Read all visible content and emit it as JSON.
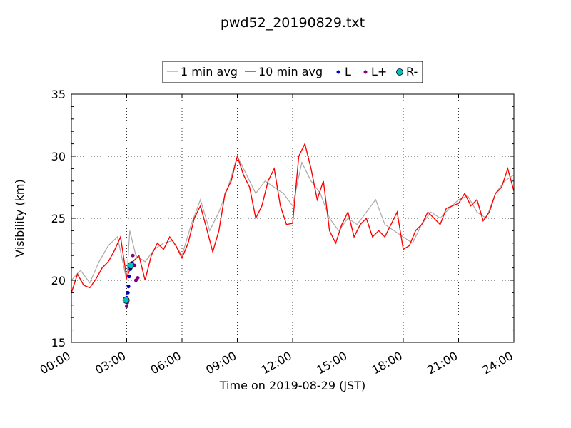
{
  "chart_data": {
    "type": "line",
    "title": "pwd52_20190829.txt",
    "xlabel": "Time on 2019-08-29 (JST)",
    "ylabel": "Visibility (km)",
    "xlim": [
      "00:00",
      "24:00"
    ],
    "ylim": [
      15,
      35
    ],
    "x_ticks": [
      "00:00",
      "03:00",
      "06:00",
      "09:00",
      "12:00",
      "15:00",
      "18:00",
      "21:00",
      "24:00"
    ],
    "y_ticks": [
      "15",
      "20",
      "25",
      "30",
      "35"
    ],
    "grid": true,
    "legend_position": "top-center",
    "series": [
      {
        "name": "1 min avg",
        "color": "#aaaaaa",
        "x": [
          "00:00",
          "00:30",
          "01:00",
          "01:30",
          "02:00",
          "02:30",
          "03:00",
          "03:10",
          "03:30",
          "04:00",
          "04:30",
          "05:00",
          "05:30",
          "06:00",
          "06:30",
          "07:00",
          "07:30",
          "08:00",
          "08:30",
          "09:00",
          "09:30",
          "10:00",
          "10:30",
          "11:00",
          "11:30",
          "12:00",
          "12:30",
          "13:00",
          "13:30",
          "14:00",
          "14:30",
          "15:00",
          "15:30",
          "16:00",
          "16:30",
          "17:00",
          "17:30",
          "18:00",
          "18:30",
          "19:00",
          "19:30",
          "20:00",
          "20:30",
          "21:00",
          "21:30",
          "22:00",
          "22:30",
          "23:00",
          "23:30",
          "24:00"
        ],
        "y": [
          20.0,
          20.8,
          19.8,
          21.5,
          22.8,
          23.5,
          20.0,
          24.0,
          22.0,
          21.5,
          22.5,
          23.0,
          23.2,
          22.0,
          24.5,
          26.5,
          24.0,
          25.5,
          27.5,
          30.0,
          28.5,
          27.0,
          28.0,
          27.5,
          27.0,
          26.0,
          29.5,
          28.0,
          27.0,
          25.0,
          24.0,
          25.0,
          24.5,
          25.5,
          26.5,
          24.5,
          24.0,
          23.5,
          23.0,
          24.5,
          25.5,
          25.0,
          25.8,
          26.5,
          26.8,
          25.5,
          25.0,
          27.0,
          28.0,
          28.5
        ]
      },
      {
        "name": "10 min avg",
        "color": "#ff0000",
        "x": [
          "00:00",
          "00:20",
          "00:40",
          "01:00",
          "01:20",
          "01:40",
          "02:00",
          "02:20",
          "02:40",
          "03:00",
          "03:20",
          "03:40",
          "04:00",
          "04:20",
          "04:40",
          "05:00",
          "05:20",
          "05:40",
          "06:00",
          "06:20",
          "06:40",
          "07:00",
          "07:20",
          "07:40",
          "08:00",
          "08:20",
          "08:40",
          "09:00",
          "09:20",
          "09:40",
          "10:00",
          "10:20",
          "10:40",
          "11:00",
          "11:20",
          "11:40",
          "12:00",
          "12:20",
          "12:40",
          "13:00",
          "13:20",
          "13:40",
          "14:00",
          "14:20",
          "14:40",
          "15:00",
          "15:20",
          "15:40",
          "16:00",
          "16:20",
          "16:40",
          "17:00",
          "17:20",
          "17:40",
          "18:00",
          "18:20",
          "18:40",
          "19:00",
          "19:20",
          "19:40",
          "20:00",
          "20:20",
          "20:40",
          "21:00",
          "21:20",
          "21:40",
          "22:00",
          "22:20",
          "22:40",
          "23:00",
          "23:20",
          "23:40",
          "24:00"
        ],
        "y": [
          19.0,
          20.5,
          19.6,
          19.4,
          20.1,
          21.0,
          21.5,
          22.4,
          23.5,
          20.2,
          21.5,
          22.0,
          20.0,
          22.0,
          23.0,
          22.5,
          23.5,
          22.8,
          21.8,
          23.0,
          25.0,
          26.0,
          24.2,
          22.3,
          24.0,
          27.0,
          28.0,
          30.0,
          28.5,
          27.5,
          25.0,
          26.0,
          28.0,
          29.0,
          26.0,
          24.5,
          24.6,
          30.0,
          31.0,
          29.0,
          26.5,
          28.0,
          24.0,
          23.0,
          24.5,
          25.5,
          23.5,
          24.5,
          25.0,
          23.5,
          24.0,
          23.5,
          24.5,
          25.5,
          22.5,
          22.8,
          24.0,
          24.5,
          25.5,
          25.0,
          24.5,
          25.8,
          26.0,
          26.2,
          27.0,
          26.0,
          26.5,
          24.8,
          25.5,
          27.0,
          27.5,
          29.0,
          27.2
        ]
      },
      {
        "name": "L",
        "color": "#0000cc",
        "type": "scatter",
        "x": [
          "03:00",
          "03:04",
          "03:06",
          "03:08",
          "03:12",
          "03:18"
        ],
        "y": [
          18.6,
          19.0,
          19.5,
          20.3,
          20.9,
          21.4
        ]
      },
      {
        "name": "L+",
        "color": "#800080",
        "type": "scatter",
        "x": [
          "03:00",
          "03:02",
          "03:20",
          "03:26",
          "03:30",
          "03:36"
        ],
        "y": [
          17.9,
          18.2,
          22.0,
          21.2,
          20.0,
          20.2
        ]
      },
      {
        "name": "R-",
        "color": "#00bfbf",
        "type": "scatter",
        "x": [
          "02:58",
          "03:14"
        ],
        "y": [
          18.4,
          21.2
        ]
      }
    ]
  }
}
